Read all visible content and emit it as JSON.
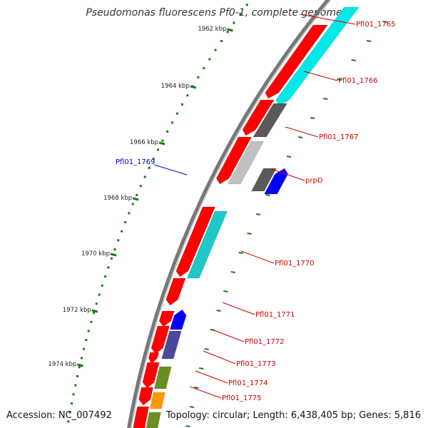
{
  "title": "Pseudomonas fluorescens Pf0-1, complete genome",
  "footer": {
    "accession": "Accession: NC_007492",
    "topology": "Topology: circular; Length: 6,438,405 bp; Genes: 5,816"
  },
  "colors": {
    "backbone": "#808080",
    "tick": "#1a7a1a",
    "label_red": "#cc0000",
    "label_blue": "#0000cc",
    "red_feature": "#ff0000",
    "cyan_feature": "#00e8e8",
    "dark_cyan_feature": "#20c8c8",
    "dark_gray_feature": "#5a5a5a",
    "light_gray_feature": "#c0c0c0",
    "blue_feature": "#0000ff",
    "slate_feature": "#4a4a9a",
    "olive_feature": "#6b8e23",
    "orange_feature": "#ff9900"
  },
  "kbp_labels": [
    "1962 kbp",
    "1964 kbp",
    "1966 kbp",
    "1968 kbp",
    "1970 kbp",
    "1972 kbp",
    "1974 kbp"
  ],
  "gene_labels": [
    {
      "name": "Pfl01_1765",
      "color": "red"
    },
    {
      "name": "Pfl01_1766",
      "color": "red"
    },
    {
      "name": "Pfl01_1767",
      "color": "red"
    },
    {
      "name": "prpD",
      "color": "red"
    },
    {
      "name": "Pfl01_1769",
      "color": "blue"
    },
    {
      "name": "Pfl01_1770",
      "color": "red"
    },
    {
      "name": "Pfl01_1771",
      "color": "red"
    },
    {
      "name": "Pfl01_1772",
      "color": "red"
    },
    {
      "name": "Pfl01_1773",
      "color": "red"
    },
    {
      "name": "Pfl01_1774",
      "color": "red"
    },
    {
      "name": "Pfl01_1775",
      "color": "red"
    }
  ]
}
